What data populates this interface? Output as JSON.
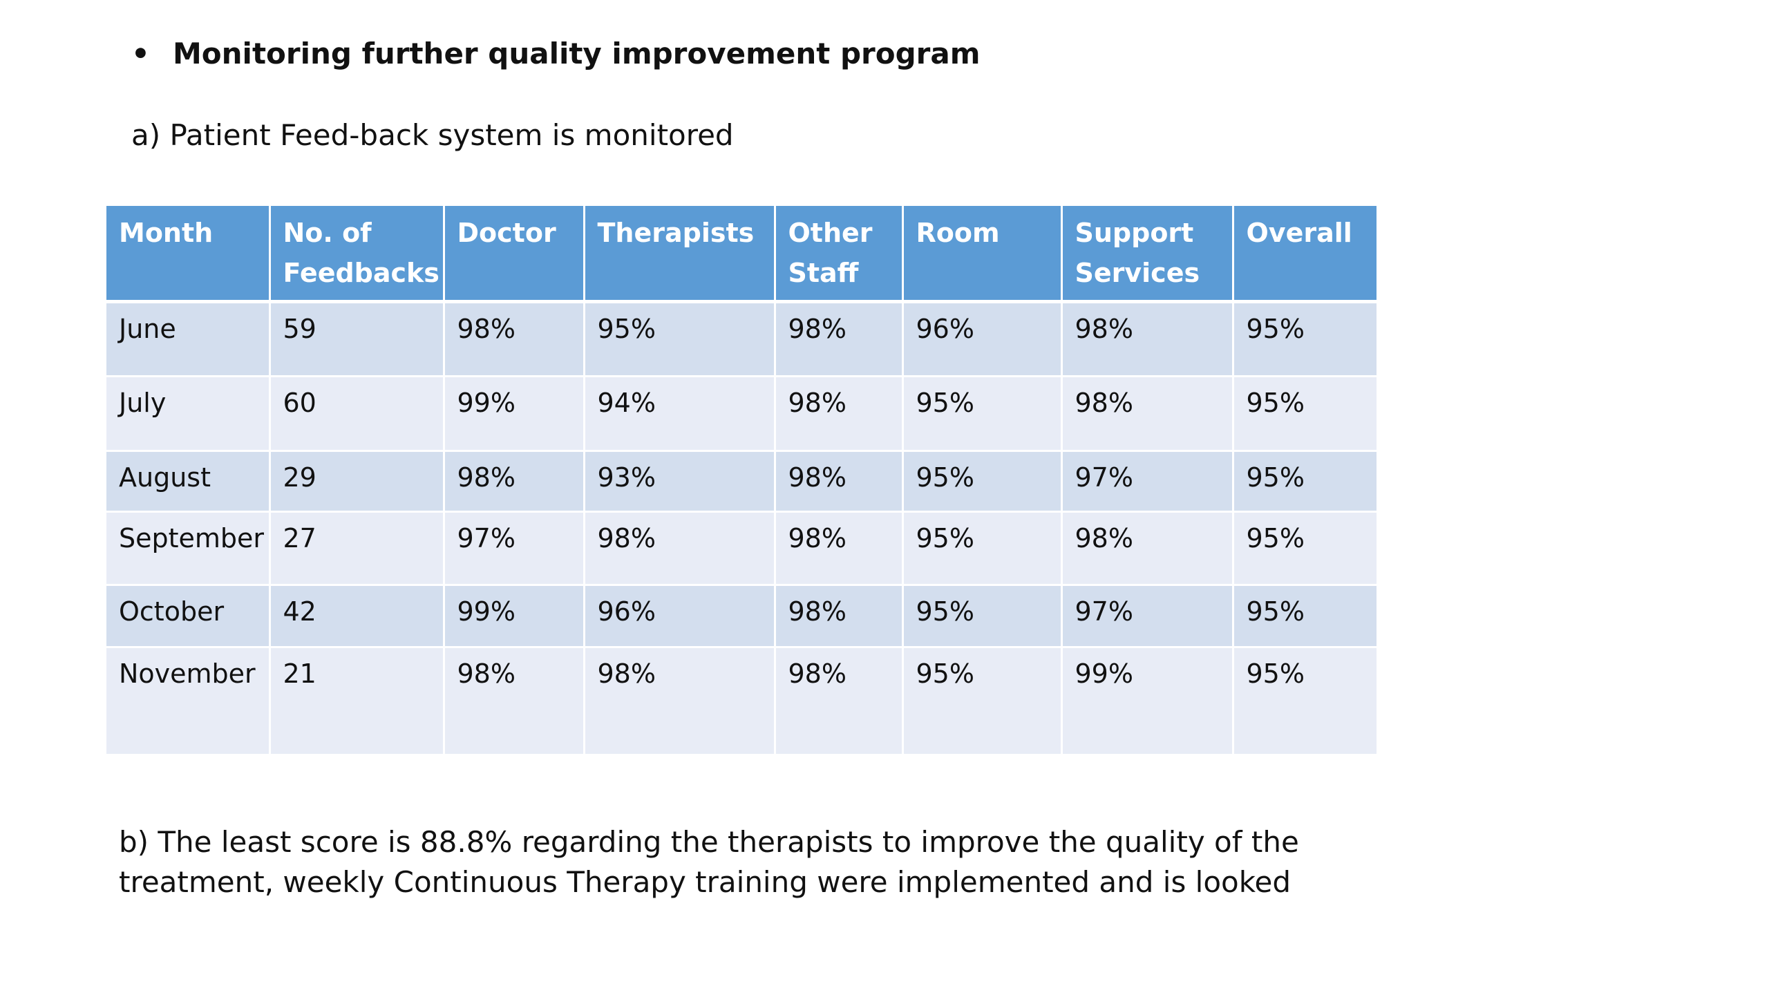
{
  "heading": {
    "bullet": "•",
    "text": "Monitoring further quality improvement program"
  },
  "subhead_a": "a) Patient Feed-back system is monitored",
  "table": {
    "columns": [
      "Month",
      "No. of Feedbacks",
      "Doctor",
      "Therapists",
      "Other Staff",
      "Room",
      "Support Services",
      "Overall"
    ],
    "rows": [
      [
        "June",
        "59",
        "98%",
        "95%",
        "98%",
        "96%",
        "98%",
        "95%"
      ],
      [
        "July",
        "60",
        "99%",
        "94%",
        "98%",
        "95%",
        "98%",
        "95%"
      ],
      [
        "August",
        "29",
        "98%",
        "93%",
        "98%",
        "95%",
        "97%",
        "95%"
      ],
      [
        "September",
        "27",
        "97%",
        "98%",
        "98%",
        "95%",
        "98%",
        "95%"
      ],
      [
        "October",
        "42",
        "99%",
        "96%",
        "98%",
        "95%",
        "97%",
        "95%"
      ],
      [
        "November",
        "21",
        "98%",
        "98%",
        "98%",
        "95%",
        "99%",
        "95%"
      ]
    ],
    "colors": {
      "header": "#5b9bd5",
      "row_band": "#d3deee",
      "row_alt": "#e8ecf6"
    }
  },
  "paragraph_b": "b) The least score is 88.8% regarding the therapists to improve the quality of the treatment, weekly Continuous Therapy training were implemented and is looked"
}
